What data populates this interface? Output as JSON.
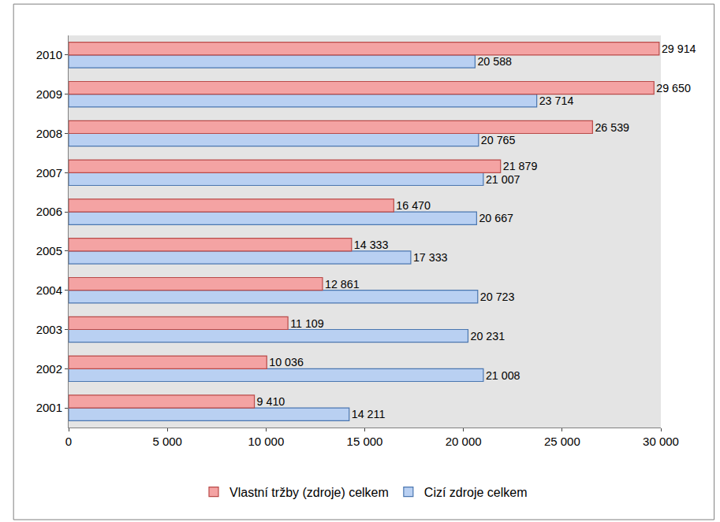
{
  "chart_data": {
    "type": "bar",
    "orientation": "horizontal",
    "categories": [
      "2001",
      "2002",
      "2003",
      "2004",
      "2005",
      "2006",
      "2007",
      "2008",
      "2009",
      "2010"
    ],
    "series": [
      {
        "name": "Vlastní tržby (zdroje) celkem",
        "color": "#f4a3a3",
        "values": [
          9410,
          10036,
          11109,
          12861,
          14333,
          16470,
          21879,
          26539,
          29650,
          29914
        ],
        "value_labels": [
          "9 410",
          "10 036",
          "11 109",
          "12 861",
          "14 333",
          "16 470",
          "21 879",
          "26 539",
          "29 650",
          "29 914"
        ]
      },
      {
        "name": "Cizí zdroje celkem",
        "color": "#b9d0f2",
        "values": [
          14211,
          21008,
          20231,
          20723,
          17333,
          20667,
          21007,
          20765,
          23714,
          20588
        ],
        "value_labels": [
          "14 211",
          "21 008",
          "20 231",
          "20 723",
          "17 333",
          "20 667",
          "21 007",
          "20 765",
          "23 714",
          "20 588"
        ]
      }
    ],
    "xlim": [
      0,
      30000
    ],
    "xticks": [
      0,
      {
        "value": 5000,
        "label": "5 000"
      },
      {
        "value": 10000,
        "label": "10 000"
      },
      {
        "value": 15000,
        "label": "15 000"
      },
      {
        "value": 20000,
        "label": "20 000"
      },
      {
        "value": 25000,
        "label": "25 000"
      },
      {
        "value": 30000,
        "label": "30 000"
      }
    ],
    "data_labels": true,
    "grid": false,
    "legend": "bottom"
  }
}
